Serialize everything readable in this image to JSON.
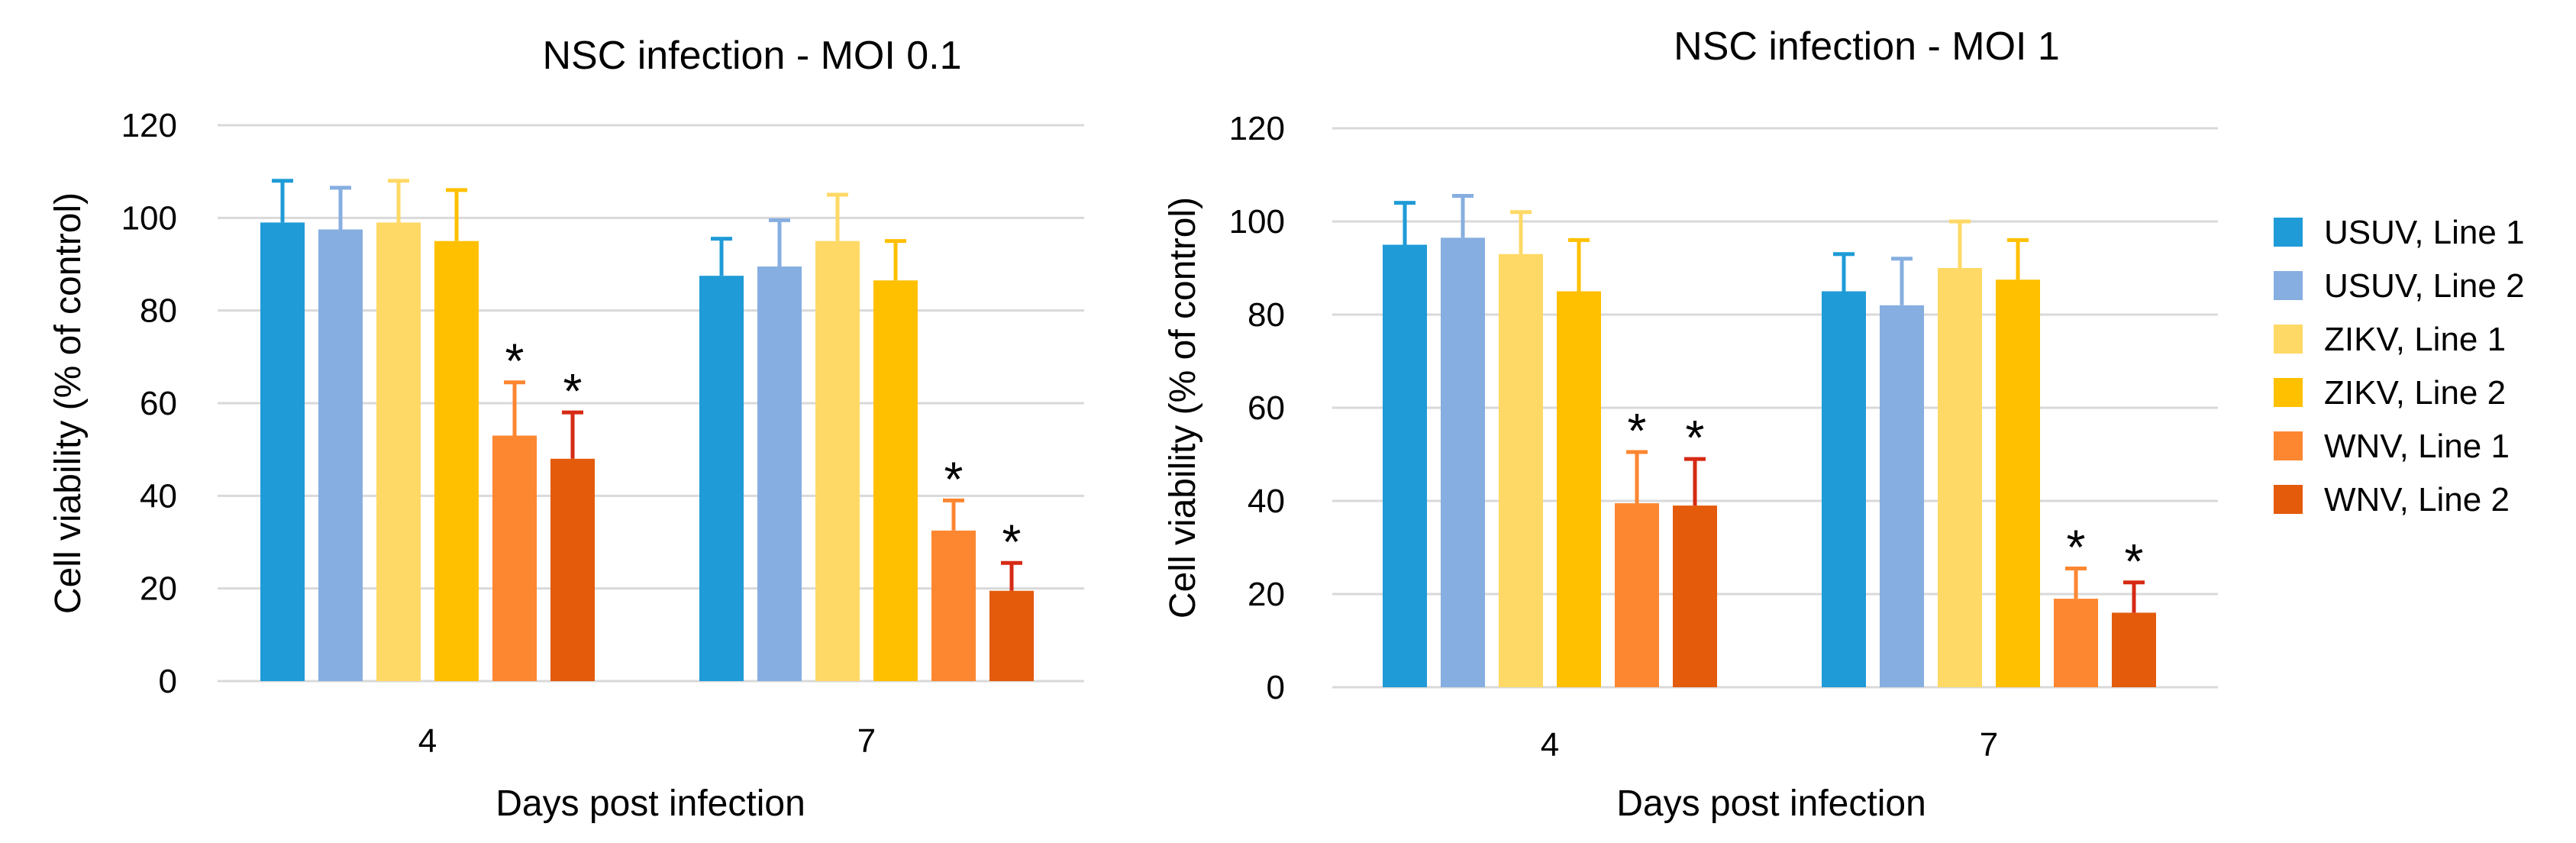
{
  "chart_data": [
    {
      "type": "bar",
      "title": "NSC infection - MOI 0.1",
      "xlabel": "Days post infection",
      "ylabel": "Cell viability (% of control)",
      "ylim": [
        0,
        120
      ],
      "yticks": [
        0,
        20,
        40,
        60,
        80,
        100,
        120
      ],
      "categories": [
        "4",
        "7"
      ],
      "series": [
        {
          "name": "USUV, Line 1",
          "values": [
            99,
            87.5
          ],
          "errors": [
            9,
            8
          ]
        },
        {
          "name": "USUV, Line 2",
          "values": [
            97.5,
            89.5
          ],
          "errors": [
            9,
            10
          ]
        },
        {
          "name": "ZIKV, Line 1",
          "values": [
            99,
            95
          ],
          "errors": [
            9,
            10
          ]
        },
        {
          "name": "ZIKV, Line 2",
          "values": [
            95,
            86.5
          ],
          "errors": [
            11,
            8.5
          ]
        },
        {
          "name": "WNV, Line 1",
          "values": [
            53,
            32.5
          ],
          "errors": [
            11.5,
            6.5
          ]
        },
        {
          "name": "WNV, Line 2",
          "values": [
            48,
            19.5
          ],
          "errors": [
            10,
            6
          ]
        }
      ],
      "significance": {
        "marker": "*",
        "series": [
          "WNV, Line 1",
          "WNV, Line 2"
        ],
        "categories": [
          "4",
          "7"
        ]
      }
    },
    {
      "type": "bar",
      "title": "NSC infection - MOI 1",
      "xlabel": "Days post infection",
      "ylabel": "Cell viability (% of control)",
      "ylim": [
        0,
        120
      ],
      "yticks": [
        0,
        20,
        40,
        60,
        80,
        100,
        120
      ],
      "categories": [
        "4",
        "7"
      ],
      "series": [
        {
          "name": "USUV, Line 1",
          "values": [
            95,
            85
          ],
          "errors": [
            9,
            8
          ]
        },
        {
          "name": "USUV, Line 2",
          "values": [
            96.5,
            82
          ],
          "errors": [
            9,
            10
          ]
        },
        {
          "name": "ZIKV, Line 1",
          "values": [
            93,
            90
          ],
          "errors": [
            9,
            10
          ]
        },
        {
          "name": "ZIKV, Line 2",
          "values": [
            85,
            87.5
          ],
          "errors": [
            11,
            8.5
          ]
        },
        {
          "name": "WNV, Line 1",
          "values": [
            39.5,
            19
          ],
          "errors": [
            11,
            6.5
          ]
        },
        {
          "name": "WNV, Line 2",
          "values": [
            39,
            16
          ],
          "errors": [
            10,
            6.5
          ]
        }
      ],
      "significance": {
        "marker": "*",
        "series": [
          "WNV, Line 1",
          "WNV, Line 2"
        ],
        "categories": [
          "4",
          "7"
        ]
      }
    }
  ],
  "legend": {
    "placement": "right",
    "items": [
      "USUV, Line 1",
      "USUV, Line 2",
      "ZIKV, Line 1",
      "ZIKV, Line 2",
      "WNV, Line 1",
      "WNV, Line 2"
    ]
  },
  "colors": {
    "USUV, Line 1": "#1f9bd7",
    "USUV, Line 2": "#86aee0",
    "ZIKV, Line 1": "#ffd966",
    "ZIKV, Line 2": "#ffc000",
    "WNV, Line 1": "#fd8631",
    "WNV, Line 2": "#e35b0b",
    "error_bar_overrides": {
      "WNV, Line 2": "#d62a14"
    },
    "gridline": "#d9d9d9",
    "axis": "#d9d9d9"
  }
}
